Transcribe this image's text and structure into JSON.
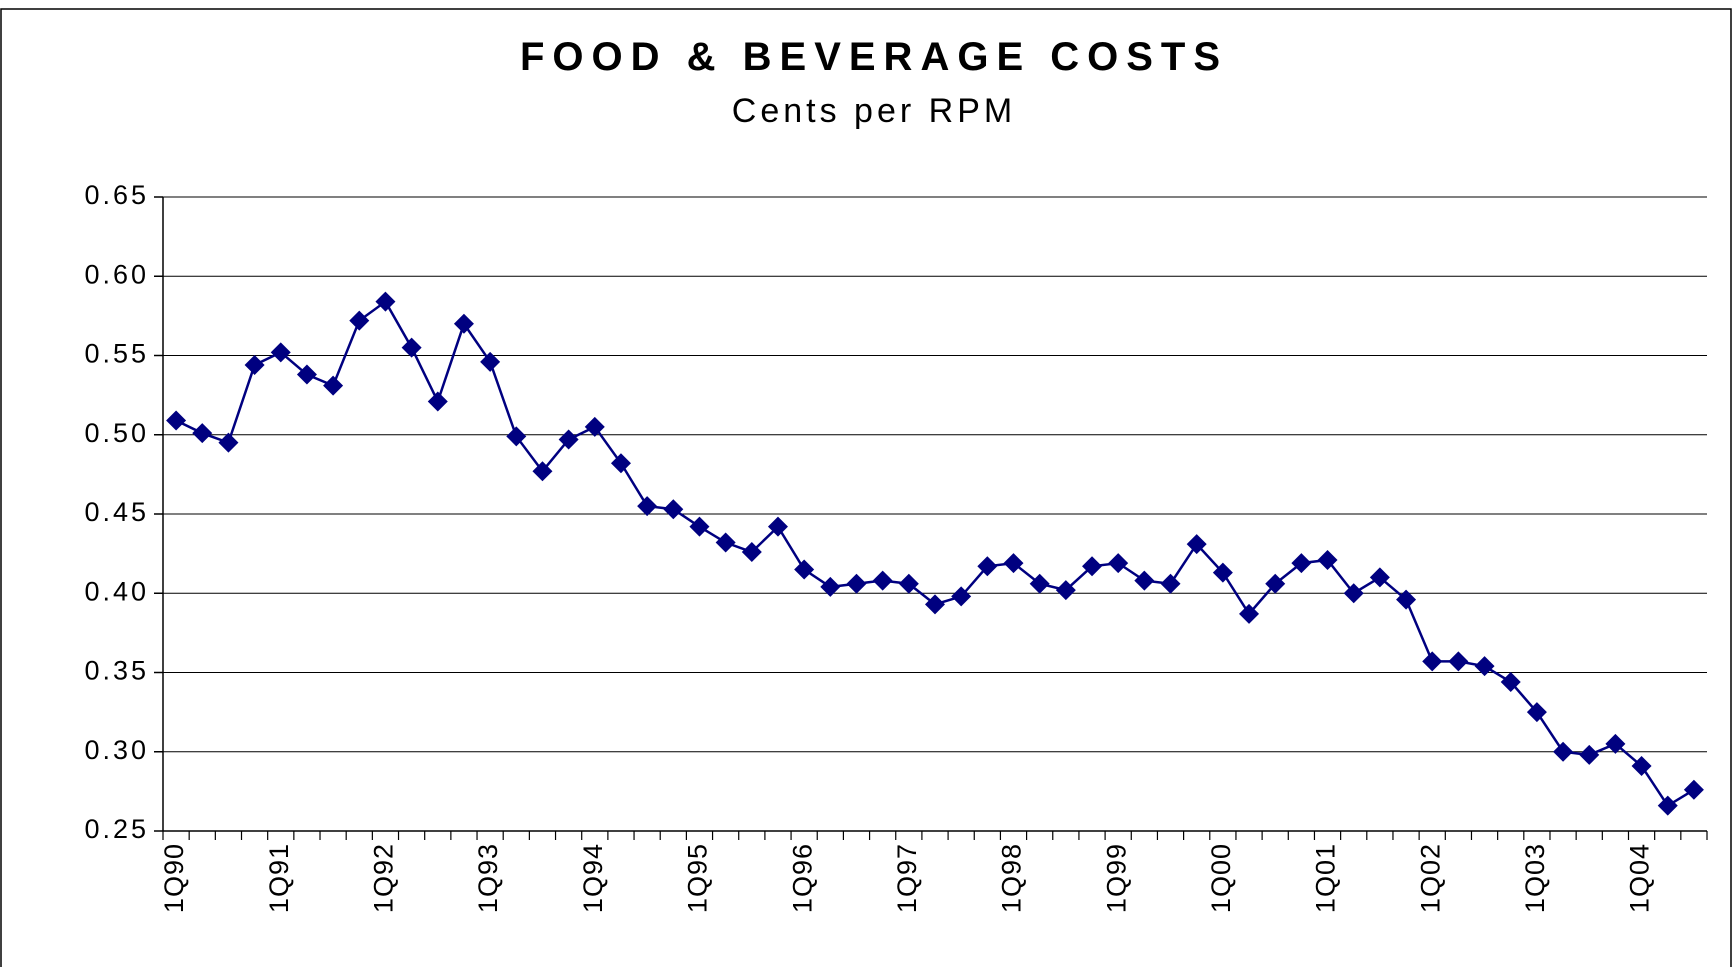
{
  "chart_data": {
    "type": "line",
    "title": "FOOD & BEVERAGE COSTS",
    "subtitle": "Cents per RPM",
    "categories": [
      "1Q90",
      null,
      null,
      null,
      "1Q91",
      null,
      null,
      null,
      "1Q92",
      null,
      null,
      null,
      "1Q93",
      null,
      null,
      null,
      "1Q94",
      null,
      null,
      null,
      "1Q95",
      null,
      null,
      null,
      "1Q96",
      null,
      null,
      null,
      "1Q97",
      null,
      null,
      null,
      "1Q98",
      null,
      null,
      null,
      "1Q99",
      null,
      null,
      null,
      "1Q00",
      null,
      null,
      null,
      "1Q01",
      null,
      null,
      null,
      "1Q02",
      null,
      null,
      null,
      "1Q03",
      null,
      null,
      null,
      "1Q04",
      null,
      null
    ],
    "values": [
      0.509,
      0.501,
      0.495,
      0.544,
      0.552,
      0.538,
      0.531,
      0.572,
      0.584,
      0.555,
      0.521,
      0.57,
      0.546,
      0.499,
      0.477,
      0.497,
      0.505,
      0.482,
      0.455,
      0.453,
      0.442,
      0.432,
      0.426,
      0.442,
      0.415,
      0.404,
      0.406,
      0.408,
      0.406,
      0.393,
      0.398,
      0.417,
      0.419,
      0.406,
      0.402,
      0.417,
      0.419,
      0.408,
      0.406,
      0.431,
      0.413,
      0.387,
      0.406,
      0.419,
      0.421,
      0.4,
      0.41,
      0.396,
      0.357,
      0.357,
      0.354,
      0.344,
      0.325,
      0.3,
      0.298,
      0.305,
      0.291,
      0.266,
      0.276
    ],
    "color": "#000080",
    "ylim": [
      0.25,
      0.65
    ],
    "yticks": [
      {
        "value": 0.25,
        "label": "0.25"
      },
      {
        "value": 0.3,
        "label": "0.30"
      },
      {
        "value": 0.35,
        "label": "0.35"
      },
      {
        "value": 0.4,
        "label": "0.40"
      },
      {
        "value": 0.45,
        "label": "0.45"
      },
      {
        "value": 0.5,
        "label": "0.50"
      },
      {
        "value": 0.55,
        "label": "0.55"
      },
      {
        "value": 0.6,
        "label": "0.60"
      },
      {
        "value": 0.65,
        "label": "0.65"
      }
    ],
    "grid": true
  }
}
